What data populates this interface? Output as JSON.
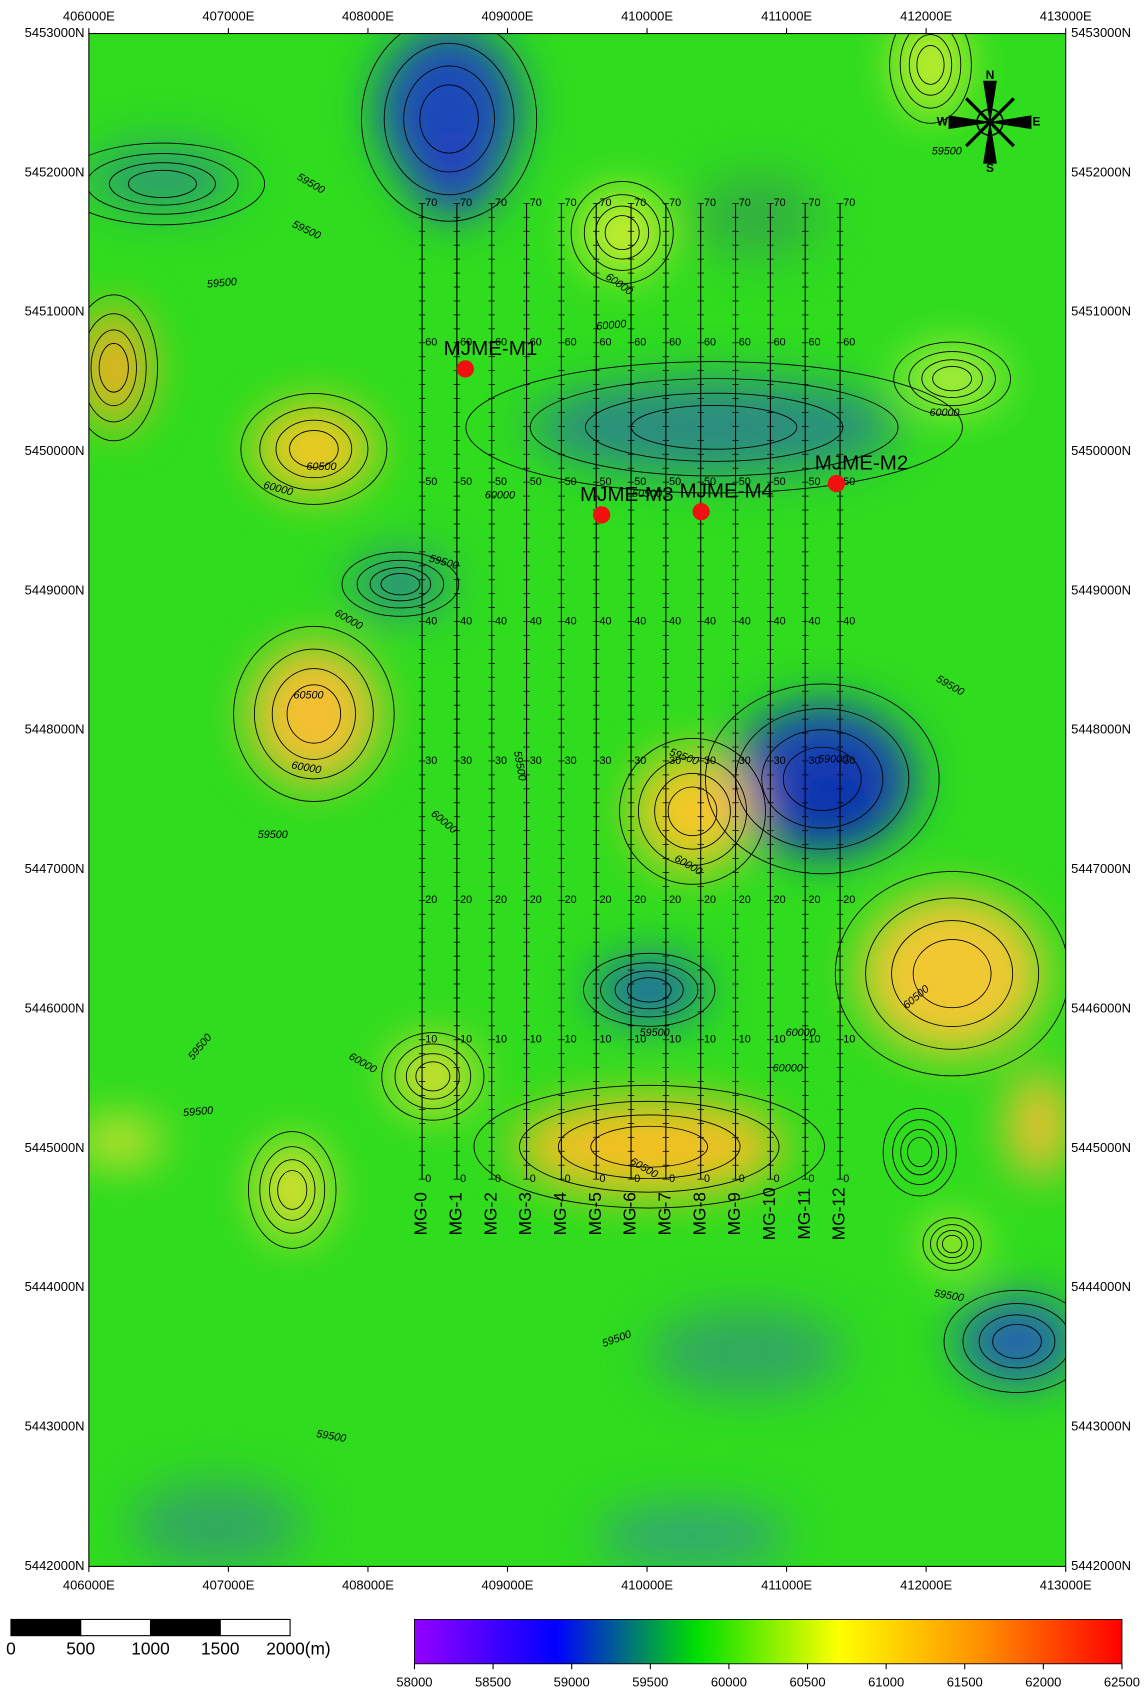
{
  "map": {
    "x_axis_labels": [
      "406000E",
      "407000E",
      "408000E",
      "409000E",
      "410000E",
      "411000E",
      "412000E",
      "413000E"
    ],
    "y_axis_labels": [
      "5453000N",
      "5452000N",
      "5451000N",
      "5450000N",
      "5449000N",
      "5448000N",
      "5447000N",
      "5446000N",
      "5445000N",
      "5444000N",
      "5443000N",
      "5442000N"
    ],
    "survey_lines": [
      "MG-0",
      "MG-1",
      "MG-2",
      "MG-3",
      "MG-4",
      "MG-5",
      "MG-6",
      "MG-7",
      "MG-8",
      "MG-9",
      "MG-10",
      "MG-11",
      "MG-12"
    ],
    "station_labels": [
      "0",
      "10",
      "20",
      "30",
      "40",
      "50",
      "60",
      "70"
    ],
    "points": [
      "MJME-M1",
      "MJME-M2",
      "MJME-M3",
      "MJME-M4"
    ],
    "contour_labels": [
      "59500",
      "59500",
      "59500",
      "59500",
      "60000",
      "60500",
      "60000",
      "59500",
      "60000",
      "60500",
      "60000",
      "60000",
      "59500",
      "60000",
      "60500",
      "60000",
      "59500",
      "60000",
      "60000",
      "59500",
      "60500",
      "60000",
      "59500",
      "59500",
      "59500",
      "59500",
      "59500",
      "59500",
      "60000",
      "60000",
      "60500",
      "59500",
      "59000"
    ],
    "compass": {
      "n": "N",
      "e": "E",
      "s": "S",
      "w": "W"
    }
  },
  "scale_bar": {
    "labels": [
      "0",
      "500",
      "1000",
      "1500",
      "2000(m)"
    ]
  },
  "color_bar": {
    "ticks": [
      58000,
      58500,
      59000,
      59500,
      60000,
      60500,
      61000,
      61500,
      62000,
      62500
    ],
    "colors": [
      "#9400ff",
      "#0000ff",
      "#00e000",
      "#ffff00",
      "#ff9000",
      "#ff0000"
    ]
  }
}
